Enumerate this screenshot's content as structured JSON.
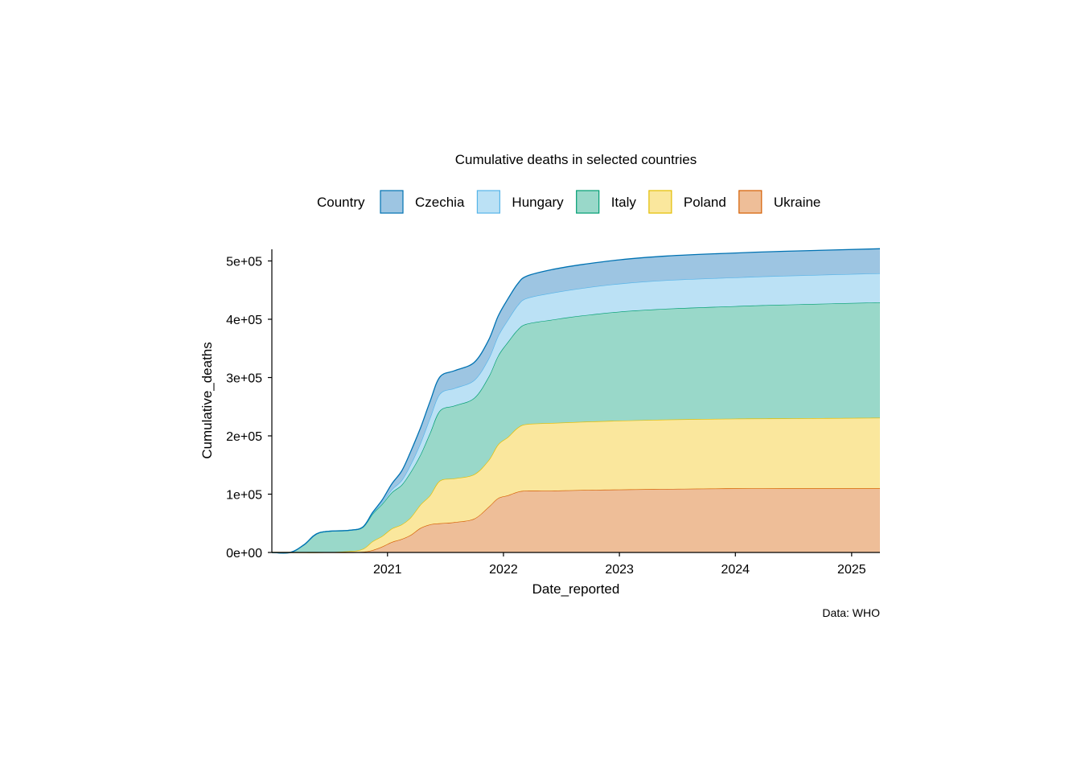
{
  "chart_data": {
    "type": "area",
    "stacked": true,
    "title": "Cumulative deaths in selected countries",
    "xlabel": "Date_reported",
    "ylabel": "Cumulative_deaths",
    "caption": "Data: WHO",
    "legend_title": "Country",
    "legend_position": "top",
    "grid": false,
    "x_range": [
      "2020-01-03",
      "2025-03-31"
    ],
    "ylim": [
      0,
      520000
    ],
    "x_ticks": [
      {
        "date": "2021-01-01",
        "label": "2021"
      },
      {
        "date": "2022-01-01",
        "label": "2022"
      },
      {
        "date": "2023-01-01",
        "label": "2023"
      },
      {
        "date": "2024-01-01",
        "label": "2024"
      },
      {
        "date": "2025-01-01",
        "label": "2025"
      }
    ],
    "y_ticks": [
      {
        "value": 0,
        "label": "0e+00"
      },
      {
        "value": 100000,
        "label": "1e+05"
      },
      {
        "value": 200000,
        "label": "2e+05"
      },
      {
        "value": 300000,
        "label": "3e+05"
      },
      {
        "value": 400000,
        "label": "4e+05"
      },
      {
        "value": 500000,
        "label": "5e+05"
      }
    ],
    "x": [
      "2020-03-01",
      "2020-04-15",
      "2020-06-01",
      "2020-09-01",
      "2020-10-15",
      "2020-11-15",
      "2020-12-15",
      "2021-01-15",
      "2021-02-15",
      "2021-03-15",
      "2021-04-15",
      "2021-05-15",
      "2021-06-15",
      "2021-08-01",
      "2021-10-01",
      "2021-11-15",
      "2021-12-15",
      "2022-01-15",
      "2022-02-15",
      "2022-03-15",
      "2022-06-01",
      "2022-09-01",
      "2023-01-01",
      "2023-06-01",
      "2024-01-01",
      "2024-06-01",
      "2025-03-31"
    ],
    "series": [
      {
        "name": "Ukraine",
        "fill": "#eebe98",
        "stroke": "#d55e00",
        "values": [
          0,
          0,
          0,
          0,
          1000,
          4000,
          10000,
          18000,
          23000,
          30000,
          42000,
          48000,
          50000,
          52000,
          58000,
          78000,
          93000,
          98000,
          104000,
          106000,
          106000,
          107000,
          108000,
          109000,
          110000,
          110000,
          110000
        ]
      },
      {
        "name": "Poland",
        "fill": "#fae79d",
        "stroke": "#e3bd00",
        "values": [
          0,
          0,
          0,
          2000,
          5000,
          15000,
          18000,
          23000,
          25000,
          30000,
          40000,
          50000,
          73000,
          75000,
          76000,
          80000,
          92000,
          100000,
          110000,
          114000,
          116000,
          117000,
          118000,
          119000,
          119500,
          120000,
          121000
        ]
      },
      {
        "name": "Italy",
        "fill": "#99d8c9",
        "stroke": "#009e73",
        "values": [
          0,
          14000,
          34000,
          36000,
          37000,
          47000,
          55000,
          62000,
          68000,
          78000,
          86000,
          107000,
          120000,
          125000,
          131000,
          143000,
          152000,
          163000,
          168000,
          172000,
          177000,
          182000,
          187000,
          190000,
          193000,
          195000,
          198000
        ]
      },
      {
        "name": "Hungary",
        "fill": "#bbe1f5",
        "stroke": "#56b4e9",
        "values": [
          0,
          0,
          0,
          0,
          400,
          1600,
          3000,
          5000,
          8000,
          13000,
          20000,
          26000,
          29000,
          30000,
          30500,
          31000,
          34000,
          38000,
          42000,
          44000,
          46000,
          47000,
          48000,
          49000,
          49200,
          49500,
          49800
        ]
      },
      {
        "name": "Czechia",
        "fill": "#9dc5e2",
        "stroke": "#0072b2",
        "values": [
          0,
          0,
          0,
          0,
          200,
          1000,
          4000,
          10000,
          16000,
          22000,
          26000,
          28000,
          29000,
          30000,
          30500,
          32000,
          34000,
          36000,
          37000,
          38000,
          40000,
          40500,
          41000,
          41500,
          42000,
          42000,
          42200
        ]
      }
    ],
    "legend_order": [
      "Czechia",
      "Hungary",
      "Italy",
      "Poland",
      "Ukraine"
    ]
  }
}
